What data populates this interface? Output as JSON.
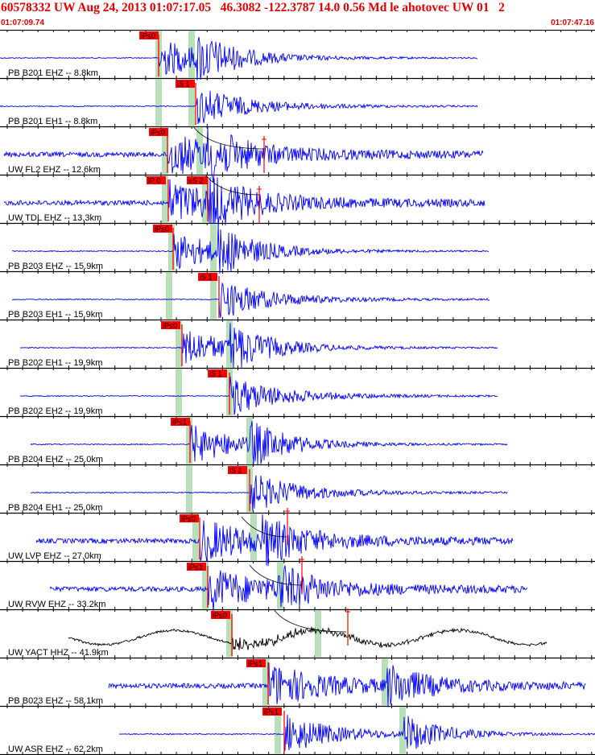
{
  "header": {
    "title": "60578332 UW Aug 24, 2013 01:07:17.05   46.3082 -122.3787 14.0 0.56 Md le ahotovec UW 01   2",
    "time_start": "01:07:09.74",
    "time_end": "01:07:47.16"
  },
  "colors": {
    "trace": "#0000ff",
    "trace_alt": "#000000",
    "pick_box": "#ff0000",
    "pick_text": "#000000",
    "theo_band": "#b8e0b8",
    "title_text": "#e00000"
  },
  "traces": [
    {
      "label": "PB B201 EHZ -- 8.8km",
      "pick": "iP≤0",
      "color": "blue"
    },
    {
      "label": "PB B201 EH1 -- 8.8km",
      "pick": "iS 1",
      "color": "blue"
    },
    {
      "label": "UW FL2 EHZ -- 12.6km",
      "pick": "iP≤0",
      "color": "blue"
    },
    {
      "label": "UW TDL EHZ -- 13.3km",
      "pick": "iP 0",
      "pick2": "eS 2",
      "color": "blue"
    },
    {
      "label": "PB B203 EHZ -- 15.9km",
      "pick": "iP≤0",
      "color": "blue"
    },
    {
      "label": "PB B203 EH1 -- 15.9km",
      "pick": "iS 1",
      "color": "blue"
    },
    {
      "label": "PB B202 EH1 -- 19.9km",
      "pick": "iP≤0",
      "color": "blue"
    },
    {
      "label": "PB B202 EH2 -- 19.9km",
      "pick": "iS 1",
      "color": "blue"
    },
    {
      "label": "PB B204 EHZ -- 25.0km",
      "pick": "iP≤1",
      "color": "blue"
    },
    {
      "label": "PB B204 EH1 -- 25.0km",
      "pick": "iS 1",
      "color": "blue"
    },
    {
      "label": "UW LVP EHZ -- 27.0km",
      "pick": "iP≤0",
      "color": "blue"
    },
    {
      "label": "UW RVW EHZ -- 33.2km",
      "pick": "iP≤1",
      "color": "blue"
    },
    {
      "label": "UW YACT HHZ -- 41.9km",
      "pick": "iP≤0",
      "color": "black"
    },
    {
      "label": "PB B023 EHZ -- 58.1km",
      "pick": "iP≤1",
      "color": "blue"
    },
    {
      "label": "UW ASR EHZ -- 62.2km",
      "pick": "iP≤1",
      "color": "blue"
    }
  ]
}
